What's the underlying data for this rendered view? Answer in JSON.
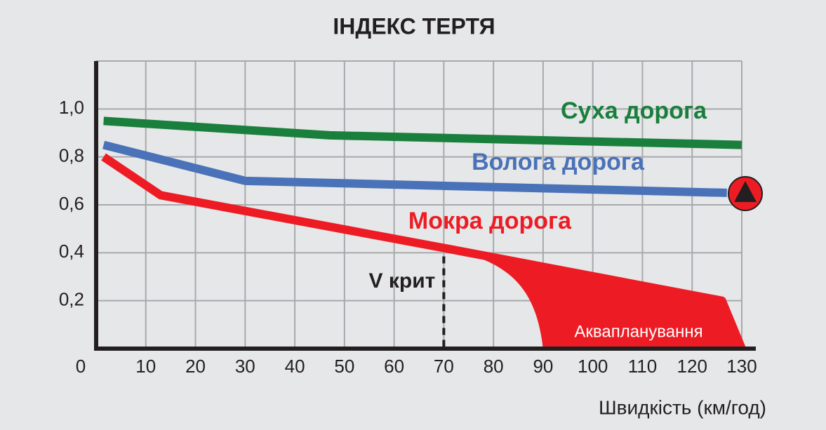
{
  "chart_data": {
    "type": "line",
    "title": "ІНДЕКС ТЕРТЯ",
    "x_label": "Швидкість (км/год)",
    "xlim": [
      0,
      130
    ],
    "xticks": [
      0,
      10,
      20,
      30,
      40,
      50,
      60,
      70,
      80,
      90,
      100,
      110,
      120,
      130
    ],
    "ylim": [
      0,
      1.2
    ],
    "yticks": [
      {
        "value": 0.2,
        "label": "0,2"
      },
      {
        "value": 0.4,
        "label": "0,4"
      },
      {
        "value": 0.6,
        "label": "0,6"
      },
      {
        "value": 0.8,
        "label": "0,8"
      },
      {
        "value": 1.0,
        "label": "1,0"
      }
    ],
    "grid": true,
    "series": [
      {
        "name": "Суха дорога",
        "color": "#1a7f3c",
        "x": [
          1.5,
          47,
          130
        ],
        "values": [
          0.95,
          0.89,
          0.85
        ]
      },
      {
        "name": "Волога дорога",
        "color": "#4a72b8",
        "x": [
          1.5,
          30,
          127
        ],
        "values": [
          0.85,
          0.7,
          0.65
        ]
      },
      {
        "name": "Мокра дорога",
        "color": "#ed1c24",
        "x": [
          1.5,
          13,
          70,
          126,
          130
        ],
        "values": [
          0.8,
          0.64,
          0.42,
          0.2,
          0
        ]
      }
    ],
    "aquaplaning": {
      "label": "Аквапланування",
      "x_start": 70,
      "x_end": 90
    },
    "vcrit": {
      "label": "V крит",
      "x": 70
    }
  }
}
